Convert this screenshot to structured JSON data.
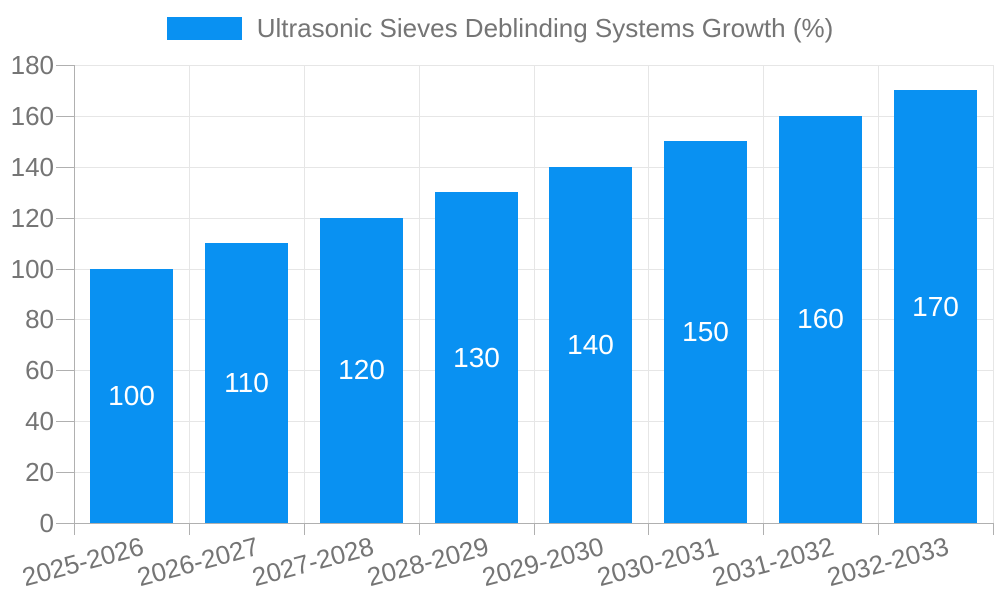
{
  "legend": {
    "series_label": "Ultrasonic Sieves Deblinding Systems Growth (%)"
  },
  "colors": {
    "bar": "#0991f2",
    "background": "#ffffff",
    "axis_line": "#b0b0b0",
    "grid_line": "#e6e6e6",
    "tick_label": "#757575",
    "value_label": "#ffffff"
  },
  "chart_data": {
    "type": "bar",
    "title": "Ultrasonic Sieves Deblinding Systems Growth (%)",
    "legend_position": "top",
    "categories": [
      "2025-2026",
      "2026-2027",
      "2027-2028",
      "2028-2029",
      "2029-2030",
      "2030-2031",
      "2031-2032",
      "2032-2033"
    ],
    "values": [
      100,
      110,
      120,
      130,
      140,
      150,
      160,
      170
    ],
    "value_labels": "inside-middle",
    "xlabel": "",
    "ylabel": "",
    "ylim": [
      0,
      180
    ],
    "yticks": [
      0,
      20,
      40,
      60,
      80,
      100,
      120,
      140,
      160,
      180
    ],
    "grid": true,
    "x_tick_label_rotation_deg": -15
  }
}
